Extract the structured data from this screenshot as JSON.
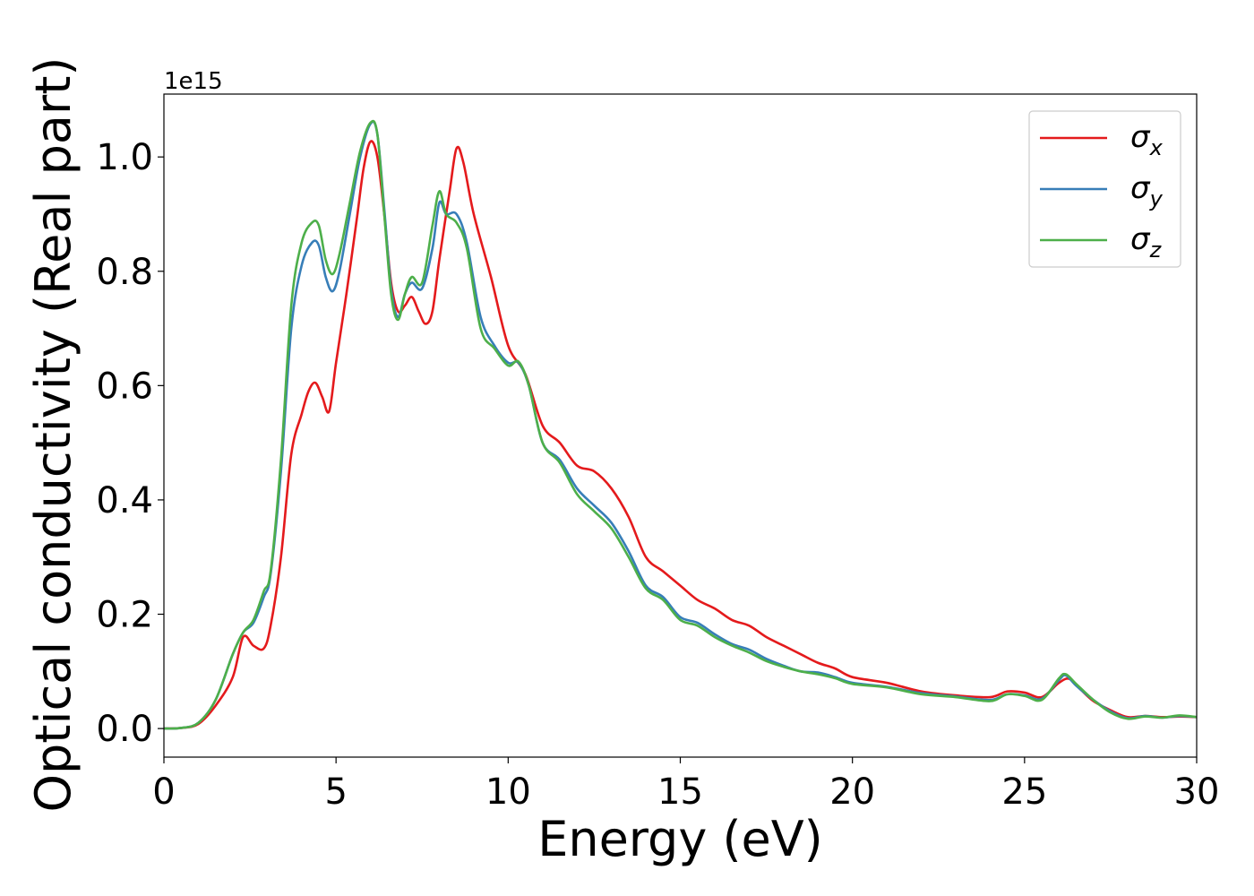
{
  "chart_data": {
    "type": "line",
    "title": "",
    "xlabel": "Energy (eV)",
    "ylabel": "Optical conductivity (Real part)",
    "y_offset_label": "1e15",
    "y_scale_multiplier": 1000000000000000.0,
    "xlim": [
      0,
      30
    ],
    "ylim": [
      -0.05,
      1.11
    ],
    "x_ticks": [
      0,
      5,
      10,
      15,
      20,
      25,
      30
    ],
    "y_ticks": [
      0.0,
      0.2,
      0.4,
      0.6,
      0.8,
      1.0
    ],
    "x_tick_labels": [
      "0",
      "5",
      "10",
      "15",
      "20",
      "25",
      "30"
    ],
    "y_tick_labels": [
      "0.0",
      "0.2",
      "0.4",
      "0.6",
      "0.8",
      "1.0"
    ],
    "grid": false,
    "legend_position": "top-right",
    "series": [
      {
        "name": "σ_x",
        "legend_base": "σ",
        "legend_sub": "x",
        "color": "#e41a1c",
        "points": [
          [
            0,
            0
          ],
          [
            0.5,
            0.001
          ],
          [
            1.0,
            0.008
          ],
          [
            1.5,
            0.04
          ],
          [
            2.0,
            0.09
          ],
          [
            2.3,
            0.16
          ],
          [
            2.6,
            0.145
          ],
          [
            2.9,
            0.14
          ],
          [
            3.1,
            0.18
          ],
          [
            3.4,
            0.3
          ],
          [
            3.7,
            0.48
          ],
          [
            4.0,
            0.55
          ],
          [
            4.2,
            0.59
          ],
          [
            4.4,
            0.605
          ],
          [
            4.6,
            0.58
          ],
          [
            4.8,
            0.555
          ],
          [
            5.0,
            0.64
          ],
          [
            5.3,
            0.76
          ],
          [
            5.6,
            0.89
          ],
          [
            5.8,
            0.98
          ],
          [
            6.0,
            1.027
          ],
          [
            6.2,
            1.0
          ],
          [
            6.4,
            0.9
          ],
          [
            6.6,
            0.78
          ],
          [
            6.8,
            0.73
          ],
          [
            7.0,
            0.74
          ],
          [
            7.2,
            0.755
          ],
          [
            7.4,
            0.73
          ],
          [
            7.6,
            0.708
          ],
          [
            7.8,
            0.73
          ],
          [
            8.0,
            0.82
          ],
          [
            8.3,
            0.94
          ],
          [
            8.5,
            1.015
          ],
          [
            8.7,
            0.99
          ],
          [
            9.0,
            0.9
          ],
          [
            9.5,
            0.79
          ],
          [
            10.0,
            0.67
          ],
          [
            10.5,
            0.62
          ],
          [
            11.0,
            0.53
          ],
          [
            11.5,
            0.5
          ],
          [
            12.0,
            0.46
          ],
          [
            12.5,
            0.45
          ],
          [
            13.0,
            0.42
          ],
          [
            13.5,
            0.37
          ],
          [
            14.0,
            0.3
          ],
          [
            14.5,
            0.275
          ],
          [
            15.0,
            0.25
          ],
          [
            15.5,
            0.225
          ],
          [
            16.0,
            0.21
          ],
          [
            16.5,
            0.19
          ],
          [
            17.0,
            0.18
          ],
          [
            17.5,
            0.16
          ],
          [
            18.0,
            0.145
          ],
          [
            18.5,
            0.13
          ],
          [
            19.0,
            0.115
          ],
          [
            19.5,
            0.105
          ],
          [
            20.0,
            0.09
          ],
          [
            21.0,
            0.08
          ],
          [
            22.0,
            0.065
          ],
          [
            23.0,
            0.058
          ],
          [
            24.0,
            0.055
          ],
          [
            24.5,
            0.065
          ],
          [
            25.0,
            0.063
          ],
          [
            25.5,
            0.055
          ],
          [
            26.0,
            0.08
          ],
          [
            26.3,
            0.087
          ],
          [
            26.6,
            0.07
          ],
          [
            27.0,
            0.048
          ],
          [
            27.5,
            0.032
          ],
          [
            28.0,
            0.02
          ],
          [
            28.5,
            0.022
          ],
          [
            29.0,
            0.02
          ],
          [
            29.5,
            0.021
          ],
          [
            30.0,
            0.02
          ]
        ]
      },
      {
        "name": "σ_y",
        "legend_base": "σ",
        "legend_sub": "y",
        "color": "#377eb8",
        "points": [
          [
            0,
            0
          ],
          [
            0.5,
            0.001
          ],
          [
            1.0,
            0.01
          ],
          [
            1.5,
            0.05
          ],
          [
            2.0,
            0.13
          ],
          [
            2.3,
            0.168
          ],
          [
            2.6,
            0.185
          ],
          [
            2.9,
            0.23
          ],
          [
            3.1,
            0.27
          ],
          [
            3.4,
            0.45
          ],
          [
            3.7,
            0.7
          ],
          [
            4.0,
            0.81
          ],
          [
            4.3,
            0.85
          ],
          [
            4.5,
            0.845
          ],
          [
            4.7,
            0.79
          ],
          [
            4.9,
            0.765
          ],
          [
            5.1,
            0.8
          ],
          [
            5.4,
            0.9
          ],
          [
            5.7,
            1.0
          ],
          [
            6.0,
            1.058
          ],
          [
            6.2,
            1.04
          ],
          [
            6.4,
            0.91
          ],
          [
            6.6,
            0.77
          ],
          [
            6.8,
            0.72
          ],
          [
            7.0,
            0.76
          ],
          [
            7.2,
            0.78
          ],
          [
            7.5,
            0.77
          ],
          [
            7.8,
            0.84
          ],
          [
            8.0,
            0.92
          ],
          [
            8.2,
            0.9
          ],
          [
            8.5,
            0.9
          ],
          [
            8.8,
            0.85
          ],
          [
            9.2,
            0.72
          ],
          [
            9.6,
            0.67
          ],
          [
            10.0,
            0.64
          ],
          [
            10.3,
            0.64
          ],
          [
            10.6,
            0.6
          ],
          [
            11.0,
            0.5
          ],
          [
            11.5,
            0.47
          ],
          [
            12.0,
            0.42
          ],
          [
            12.5,
            0.39
          ],
          [
            13.0,
            0.36
          ],
          [
            13.5,
            0.31
          ],
          [
            14.0,
            0.25
          ],
          [
            14.5,
            0.23
          ],
          [
            15.0,
            0.195
          ],
          [
            15.5,
            0.185
          ],
          [
            16.0,
            0.165
          ],
          [
            16.5,
            0.148
          ],
          [
            17.0,
            0.138
          ],
          [
            17.5,
            0.122
          ],
          [
            18.0,
            0.11
          ],
          [
            18.5,
            0.1
          ],
          [
            19.0,
            0.098
          ],
          [
            19.5,
            0.09
          ],
          [
            20.0,
            0.08
          ],
          [
            21.0,
            0.073
          ],
          [
            22.0,
            0.062
          ],
          [
            23.0,
            0.056
          ],
          [
            24.0,
            0.05
          ],
          [
            24.5,
            0.06
          ],
          [
            25.0,
            0.058
          ],
          [
            25.5,
            0.052
          ],
          [
            26.0,
            0.085
          ],
          [
            26.2,
            0.093
          ],
          [
            26.5,
            0.075
          ],
          [
            27.0,
            0.05
          ],
          [
            27.5,
            0.03
          ],
          [
            28.0,
            0.018
          ],
          [
            28.5,
            0.022
          ],
          [
            29.0,
            0.019
          ],
          [
            29.5,
            0.022
          ],
          [
            30.0,
            0.02
          ]
        ]
      },
      {
        "name": "σ_z",
        "legend_base": "σ",
        "legend_sub": "z",
        "color": "#4daf4a",
        "points": [
          [
            0,
            0
          ],
          [
            0.5,
            0.001
          ],
          [
            1.0,
            0.01
          ],
          [
            1.5,
            0.05
          ],
          [
            2.0,
            0.13
          ],
          [
            2.3,
            0.168
          ],
          [
            2.6,
            0.19
          ],
          [
            2.9,
            0.24
          ],
          [
            3.1,
            0.275
          ],
          [
            3.4,
            0.47
          ],
          [
            3.7,
            0.74
          ],
          [
            4.0,
            0.85
          ],
          [
            4.3,
            0.885
          ],
          [
            4.5,
            0.88
          ],
          [
            4.7,
            0.82
          ],
          [
            4.9,
            0.795
          ],
          [
            5.1,
            0.83
          ],
          [
            5.4,
            0.92
          ],
          [
            5.7,
            1.01
          ],
          [
            6.0,
            1.06
          ],
          [
            6.2,
            1.04
          ],
          [
            6.4,
            0.9
          ],
          [
            6.6,
            0.76
          ],
          [
            6.8,
            0.715
          ],
          [
            7.0,
            0.76
          ],
          [
            7.2,
            0.79
          ],
          [
            7.5,
            0.78
          ],
          [
            7.8,
            0.88
          ],
          [
            8.0,
            0.94
          ],
          [
            8.2,
            0.9
          ],
          [
            8.5,
            0.885
          ],
          [
            8.8,
            0.84
          ],
          [
            9.2,
            0.7
          ],
          [
            9.6,
            0.665
          ],
          [
            10.0,
            0.635
          ],
          [
            10.3,
            0.642
          ],
          [
            10.6,
            0.6
          ],
          [
            11.0,
            0.5
          ],
          [
            11.5,
            0.465
          ],
          [
            12.0,
            0.41
          ],
          [
            12.5,
            0.38
          ],
          [
            13.0,
            0.35
          ],
          [
            13.5,
            0.3
          ],
          [
            14.0,
            0.245
          ],
          [
            14.5,
            0.225
          ],
          [
            15.0,
            0.19
          ],
          [
            15.5,
            0.18
          ],
          [
            16.0,
            0.16
          ],
          [
            16.5,
            0.145
          ],
          [
            17.0,
            0.133
          ],
          [
            17.5,
            0.118
          ],
          [
            18.0,
            0.108
          ],
          [
            18.5,
            0.1
          ],
          [
            19.0,
            0.095
          ],
          [
            19.5,
            0.088
          ],
          [
            20.0,
            0.078
          ],
          [
            21.0,
            0.072
          ],
          [
            22.0,
            0.06
          ],
          [
            23.0,
            0.055
          ],
          [
            24.0,
            0.048
          ],
          [
            24.5,
            0.06
          ],
          [
            25.0,
            0.057
          ],
          [
            25.5,
            0.05
          ],
          [
            26.0,
            0.088
          ],
          [
            26.2,
            0.095
          ],
          [
            26.5,
            0.078
          ],
          [
            27.0,
            0.05
          ],
          [
            27.5,
            0.028
          ],
          [
            28.0,
            0.017
          ],
          [
            28.5,
            0.021
          ],
          [
            29.0,
            0.019
          ],
          [
            29.5,
            0.023
          ],
          [
            30.0,
            0.02
          ]
        ]
      }
    ]
  }
}
